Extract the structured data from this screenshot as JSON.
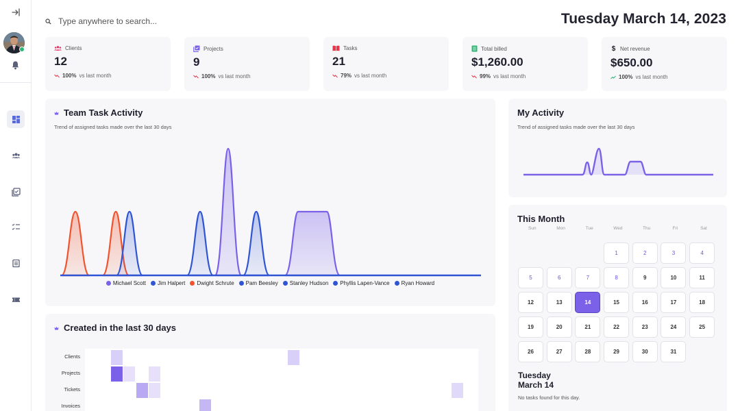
{
  "header": {
    "search_placeholder": "Type anywhere to search...",
    "date": "Tuesday March 14, 2023"
  },
  "sidebar": {
    "items": [
      {
        "icon": "dashboard-icon",
        "active": true
      },
      {
        "icon": "people-icon",
        "active": false
      },
      {
        "icon": "projects-icon",
        "active": false
      },
      {
        "icon": "task-list-icon",
        "active": false
      },
      {
        "icon": "billing-icon",
        "active": false
      },
      {
        "icon": "ticket-icon",
        "active": false
      }
    ]
  },
  "stats": [
    {
      "label": "Clients",
      "value": "12",
      "change": "100%",
      "change_text": "vs last month",
      "icon": "people-icon",
      "color": "#e8356a",
      "trend": "down"
    },
    {
      "label": "Projects",
      "value": "9",
      "change": "100%",
      "change_text": "vs last month",
      "icon": "projects-icon",
      "color": "#7b61e8",
      "trend": "down"
    },
    {
      "label": "Tasks",
      "value": "21",
      "change": "79%",
      "change_text": "vs last month",
      "icon": "tasks-icon",
      "color": "#e8354a",
      "trend": "down"
    },
    {
      "label": "Total billed",
      "value": "$1,260.00",
      "change": "99%",
      "change_text": "vs last month",
      "icon": "billing-icon",
      "color": "#2bb673",
      "trend": "down"
    },
    {
      "label": "Net revenue",
      "value": "$650.00",
      "change": "100%",
      "change_text": "vs last month",
      "icon": "dollar-icon",
      "color": "#2bb673",
      "trend": "up"
    }
  ],
  "team_activity": {
    "title": "Team Task Activity",
    "subtitle": "Trend of assigned tasks made over the last 30 days",
    "legend": [
      {
        "name": "Michael Scott",
        "color": "#7b61e8"
      },
      {
        "name": "Jim Halpert",
        "color": "#2f55d4"
      },
      {
        "name": "Dwight Schrute",
        "color": "#f0532d"
      },
      {
        "name": "Pam Beesley",
        "color": "#2f55d4"
      },
      {
        "name": "Stanley Hudson",
        "color": "#2f55d4"
      },
      {
        "name": "Phyllis Lapen-Vance",
        "color": "#2f55d4"
      },
      {
        "name": "Ryan Howard",
        "color": "#2f55d4"
      }
    ]
  },
  "my_activity": {
    "title": "My Activity",
    "subtitle": "Trend of assigned tasks made over the last 30 days"
  },
  "created": {
    "title": "Created in the last 30 days",
    "rows": [
      "Clients",
      "Projects",
      "Tickets",
      "Invoices"
    ]
  },
  "calendar": {
    "title": "This Month",
    "weekdays": [
      "Sun",
      "Mon",
      "Tue",
      "Wed",
      "Thu",
      "Fri",
      "Sat"
    ],
    "leading_blanks": 3,
    "days": 31,
    "today": 14,
    "selected_title_line1": "Tuesday",
    "selected_title_line2": "March 14",
    "note": "No tasks found for this day."
  }
}
